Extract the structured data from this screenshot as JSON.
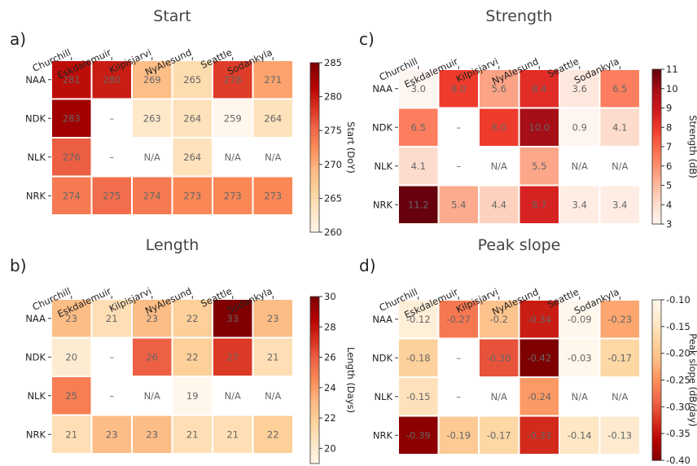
{
  "chart_data": [
    {
      "type": "heatmap",
      "panel_label": "a)",
      "title": "Start",
      "columns": [
        "Churchill",
        "Eskdalemuir",
        "Kilpisjarvi",
        "NyAlesund",
        "Seattle",
        "Sodankyla"
      ],
      "rows": [
        "NAA",
        "NDK",
        "NLK",
        "NRK"
      ],
      "values": [
        [
          281,
          280,
          269,
          265,
          278,
          271
        ],
        [
          283,
          null,
          263,
          264,
          259,
          264
        ],
        [
          276,
          null,
          null,
          264,
          null,
          null
        ],
        [
          274,
          275,
          274,
          273,
          273,
          273
        ]
      ],
      "cell_labels": [
        [
          "281",
          "280",
          "269",
          "265",
          "278",
          "271"
        ],
        [
          "283",
          "–",
          "263",
          "264",
          "259",
          "264"
        ],
        [
          "276",
          "–",
          "N/A",
          "264",
          "N/A",
          "N/A"
        ],
        [
          "274",
          "275",
          "274",
          "273",
          "273",
          "273"
        ]
      ],
      "colorbar": {
        "label": "Start (DoY)",
        "min": 260,
        "max": 285,
        "ticks": [
          260,
          265,
          270,
          275,
          280,
          285
        ],
        "reversed": false
      },
      "colormap": "OrRd"
    },
    {
      "type": "heatmap",
      "panel_label": "c)",
      "title": "Strength",
      "columns": [
        "Churchill",
        "Eskdalemuir",
        "Kilpisjarvi",
        "NyAlesund",
        "Seattle",
        "Sodankyla"
      ],
      "rows": [
        "NAA",
        "NDK",
        "NLK",
        "NRK"
      ],
      "values": [
        [
          3.0,
          8.0,
          5.6,
          8.4,
          3.6,
          6.5
        ],
        [
          6.5,
          null,
          8.0,
          10.0,
          0.9,
          4.1
        ],
        [
          4.1,
          null,
          null,
          5.5,
          null,
          null
        ],
        [
          11.2,
          5.4,
          4.4,
          8.7,
          3.4,
          3.4
        ]
      ],
      "cell_labels": [
        [
          "3.0",
          "8.0",
          "5.6",
          "8.4",
          "3.6",
          "6.5"
        ],
        [
          "6.5",
          "–",
          "8.0",
          "10.0",
          "0.9",
          "4.1"
        ],
        [
          "4.1",
          "–",
          "N/A",
          "5.5",
          "N/A",
          "N/A"
        ],
        [
          "11.2",
          "5.4",
          "4.4",
          "8.7",
          "3.4",
          "3.4"
        ]
      ],
      "colorbar": {
        "label": "Strength (dB)",
        "min": 3,
        "max": 11,
        "ticks": [
          3,
          4,
          5,
          6,
          7,
          8,
          9,
          10,
          11
        ],
        "reversed": false
      },
      "colormap": "Reds"
    },
    {
      "type": "heatmap",
      "panel_label": "b)",
      "title": "Length",
      "columns": [
        "Churchill",
        "Eskdalemuir",
        "Kilpisjarvi",
        "NyAlesund",
        "Seattle",
        "Sodankyla"
      ],
      "rows": [
        "NAA",
        "NDK",
        "NLK",
        "NRK"
      ],
      "values": [
        [
          23,
          21,
          23,
          22,
          33,
          23
        ],
        [
          20,
          null,
          26,
          22,
          27,
          21
        ],
        [
          25,
          null,
          null,
          19,
          null,
          null
        ],
        [
          21,
          23,
          23,
          21,
          21,
          22
        ]
      ],
      "cell_labels": [
        [
          "23",
          "21",
          "23",
          "22",
          "33",
          "23"
        ],
        [
          "20",
          "–",
          "26",
          "22",
          "27",
          "21"
        ],
        [
          "25",
          "–",
          "N/A",
          "19",
          "N/A",
          "N/A"
        ],
        [
          "21",
          "23",
          "23",
          "21",
          "21",
          "22"
        ]
      ],
      "colorbar": {
        "label": "Length (Days)",
        "min": 19,
        "max": 30,
        "ticks": [
          20,
          22,
          24,
          26,
          28,
          30
        ],
        "reversed": false
      },
      "colormap": "OrRd"
    },
    {
      "type": "heatmap",
      "panel_label": "d)",
      "title": "Peak slope",
      "columns": [
        "Churchill",
        "Eskdalemuir",
        "Kilpisjarvi",
        "NyAlesund",
        "Seattle",
        "Sodankyla"
      ],
      "rows": [
        "NAA",
        "NDK",
        "NLK",
        "NRK"
      ],
      "values": [
        [
          -0.12,
          -0.27,
          -0.2,
          -0.34,
          -0.09,
          -0.23
        ],
        [
          -0.18,
          null,
          -0.3,
          -0.42,
          -0.03,
          -0.17
        ],
        [
          -0.15,
          null,
          null,
          -0.24,
          null,
          null
        ],
        [
          -0.39,
          -0.19,
          -0.17,
          -0.33,
          -0.14,
          -0.13
        ]
      ],
      "cell_labels": [
        [
          "-0.12",
          "-0.27",
          "-0.2",
          "-0.34",
          "-0.09",
          "-0.23"
        ],
        [
          "-0.18",
          "–",
          "-0.30",
          "-0.42",
          "-0.03",
          "-0.17"
        ],
        [
          "-0.15",
          "–",
          "N/A",
          "-0.24",
          "N/A",
          "N/A"
        ],
        [
          "-0.39",
          "-0.19",
          "-0.17",
          "-0.33",
          "-0.14",
          "-0.13"
        ]
      ],
      "colorbar": {
        "label": "Peak slope (dB/day)",
        "min": -0.4,
        "max": -0.1,
        "ticks": [
          -0.4,
          -0.35,
          -0.3,
          -0.25,
          -0.2,
          -0.15,
          -0.1
        ],
        "reversed": true
      },
      "colormap": "OrRd_r"
    }
  ]
}
